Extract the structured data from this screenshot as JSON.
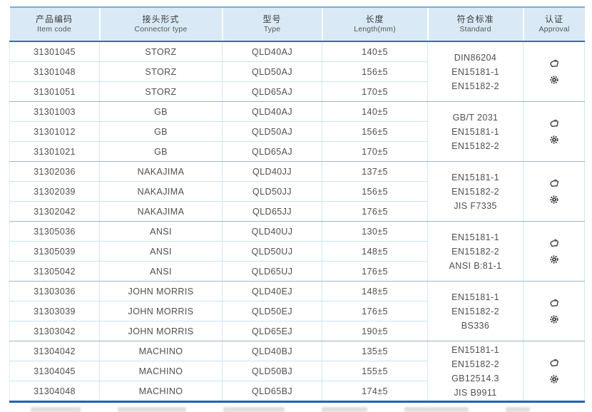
{
  "table": {
    "headers": [
      {
        "zh": "产品编码",
        "en": "Item code"
      },
      {
        "zh": "接头形式",
        "en": "Connector type"
      },
      {
        "zh": "型号",
        "en": "Type"
      },
      {
        "zh": "长度",
        "en": "Length(mm)"
      },
      {
        "zh": "符合标准",
        "en": "Standard"
      },
      {
        "zh": "认证",
        "en": "Approval"
      }
    ],
    "groups": [
      {
        "rows": [
          {
            "item_code": "31301045",
            "connector_type": "STORZ",
            "type": "QLD40AJ",
            "length": "140±5"
          },
          {
            "item_code": "31301048",
            "connector_type": "STORZ",
            "type": "QLD50AJ",
            "length": "156±5"
          },
          {
            "item_code": "31301051",
            "connector_type": "STORZ",
            "type": "QLD65AJ",
            "length": "170±5"
          }
        ],
        "standards": [
          "DIN86204",
          "EN15181-1",
          "EN15182-2"
        ],
        "approval_icons": [
          "certificate-stamp-icon",
          "wheelmark-seal-icon"
        ]
      },
      {
        "rows": [
          {
            "item_code": "31301003",
            "connector_type": "GB",
            "type": "QLD40AJ",
            "length": "140±5"
          },
          {
            "item_code": "31301012",
            "connector_type": "GB",
            "type": "QLD50AJ",
            "length": "156±5"
          },
          {
            "item_code": "31301021",
            "connector_type": "GB",
            "type": "QLD65AJ",
            "length": "170±5"
          }
        ],
        "standards": [
          "GB/T 2031",
          "EN15181-1",
          "EN15182-2"
        ],
        "approval_icons": [
          "certificate-stamp-icon",
          "wheelmark-seal-icon"
        ]
      },
      {
        "rows": [
          {
            "item_code": "31302036",
            "connector_type": "NAKAJIMA",
            "type": "QLD40JJ",
            "length": "137±5"
          },
          {
            "item_code": "31302039",
            "connector_type": "NAKAJIMA",
            "type": "QLD50JJ",
            "length": "156±5"
          },
          {
            "item_code": "31302042",
            "connector_type": "NAKAJIMA",
            "type": "QLD65JJ",
            "length": "176±5"
          }
        ],
        "standards": [
          "EN15181-1",
          "EN15182-2",
          "JIS F7335"
        ],
        "approval_icons": [
          "certificate-stamp-icon",
          "wheelmark-seal-icon"
        ]
      },
      {
        "rows": [
          {
            "item_code": "31305036",
            "connector_type": "ANSI",
            "type": "QLD40UJ",
            "length": "130±5"
          },
          {
            "item_code": "31305039",
            "connector_type": "ANSI",
            "type": "QLD50UJ",
            "length": "148±5"
          },
          {
            "item_code": "31305042",
            "connector_type": "ANSI",
            "type": "QLD65UJ",
            "length": "176±5"
          }
        ],
        "standards": [
          "EN15181-1",
          "EN15182-2",
          "ANSI B:81-1"
        ],
        "approval_icons": [
          "certificate-stamp-icon",
          "wheelmark-seal-icon"
        ]
      },
      {
        "rows": [
          {
            "item_code": "31303036",
            "connector_type": "JOHN MORRIS",
            "type": "QLD40EJ",
            "length": "148±5"
          },
          {
            "item_code": "31303039",
            "connector_type": "JOHN MORRIS",
            "type": "QLD50EJ",
            "length": "176±5"
          },
          {
            "item_code": "31303042",
            "connector_type": "JOHN MORRIS",
            "type": "QLD65EJ",
            "length": "190±5"
          }
        ],
        "standards": [
          "EN15181-1",
          "EN15182-2",
          "BS336"
        ],
        "approval_icons": [
          "certificate-stamp-icon",
          "wheelmark-seal-icon"
        ]
      },
      {
        "rows": [
          {
            "item_code": "31304042",
            "connector_type": "MACHINO",
            "type": "QLD40BJ",
            "length": "135±5"
          },
          {
            "item_code": "31304045",
            "connector_type": "MACHINO",
            "type": "QLD50BJ",
            "length": "155±5"
          },
          {
            "item_code": "31304048",
            "connector_type": "MACHINO",
            "type": "QLD65BJ",
            "length": "174±5"
          }
        ],
        "standards": [
          "EN15181-1",
          "EN15182-2",
          "GB12514.3",
          "JIS B9911"
        ],
        "approval_icons": [
          "certificate-stamp-icon",
          "wheelmark-seal-icon"
        ]
      }
    ],
    "colors": {
      "header_background": "#d9eaf6",
      "header_underline": "#2e70b8",
      "table_bottom_border": "#1f63ae",
      "row_separator": "#c6e5f4",
      "group_separator": "#9fb6c6",
      "body_text": "#4f4f4f"
    }
  }
}
